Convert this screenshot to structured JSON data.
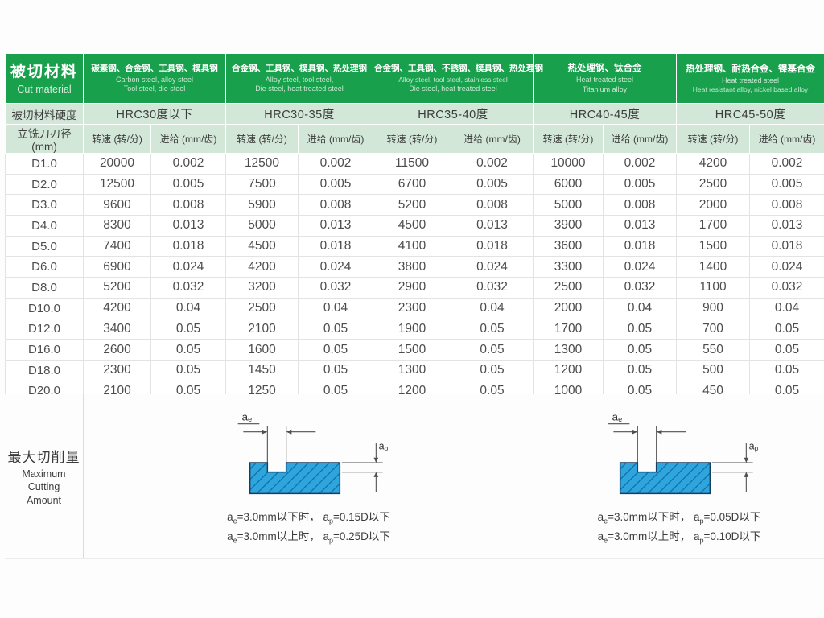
{
  "colors": {
    "header_green": "#18a04c",
    "light_green": "#d2e7d8",
    "diagram_blue": "#2fa5de",
    "diagram_hatch": "#0f6fa6",
    "diagram_outline": "#173f63",
    "text_dark": "#3c3c3c"
  },
  "table": {
    "corner": {
      "zh": "被切材料",
      "en": "Cut material"
    },
    "hardness_label": "被切材料硬度",
    "diameter_label": "立铣刀刃径 (mm)",
    "speed_label": "转速 (转/分)",
    "feed_label": "进给 (mm/齿)",
    "header_groups": [
      {
        "materials_zh": "碳素钢、合金钢、工具钢、模具钢",
        "materials_en": [
          "Carbon steel,  alloy steel",
          "Tool steel,  die steel"
        ],
        "hardness": "HRC30度以下"
      },
      {
        "materials_zh": "合金钢、工具钢、模具钢、热处理钢",
        "materials_en": [
          "Alloy steel, tool steel,",
          "Die steel, heat treated steel"
        ],
        "hardness": "HRC30-35度"
      },
      {
        "materials_zh": "合金钢、工具钢、不锈钢、模具钢、热处理钢",
        "materials_en": [
          "Alloy steel, tool steel, stainless steel",
          "Die steel, heat treated steel"
        ],
        "hardness": "HRC35-40度"
      },
      {
        "materials_zh": "热处理钢、钛合金",
        "materials_en": [
          "Heat treated steel",
          "Titanium alloy"
        ],
        "hardness": "HRC40-45度"
      },
      {
        "materials_zh": "热处理钢、耐热合金、镍基合金",
        "materials_en": [
          "Heat treated steel",
          "Heat resistant alloy,  nickel based alloy"
        ],
        "hardness": "HRC45-50度"
      }
    ],
    "rows": [
      {
        "diameter": "D1.0",
        "cells": [
          "20000",
          "0.002",
          "12500",
          "0.002",
          "11500",
          "0.002",
          "10000",
          "0.002",
          "4200",
          "0.002"
        ]
      },
      {
        "diameter": "D2.0",
        "cells": [
          "12500",
          "0.005",
          "7500",
          "0.005",
          "6700",
          "0.005",
          "6000",
          "0.005",
          "2500",
          "0.005"
        ]
      },
      {
        "diameter": "D3.0",
        "cells": [
          "9600",
          "0.008",
          "5900",
          "0.008",
          "5200",
          "0.008",
          "5000",
          "0.008",
          "2000",
          "0.008"
        ]
      },
      {
        "diameter": "D4.0",
        "cells": [
          "8300",
          "0.013",
          "5000",
          "0.013",
          "4500",
          "0.013",
          "3900",
          "0.013",
          "1700",
          "0.013"
        ]
      },
      {
        "diameter": "D5.0",
        "cells": [
          "7400",
          "0.018",
          "4500",
          "0.018",
          "4100",
          "0.018",
          "3600",
          "0.018",
          "1500",
          "0.018"
        ]
      },
      {
        "diameter": "D6.0",
        "cells": [
          "6900",
          "0.024",
          "4200",
          "0.024",
          "3800",
          "0.024",
          "3300",
          "0.024",
          "1400",
          "0.024"
        ]
      },
      {
        "diameter": "D8.0",
        "cells": [
          "5200",
          "0.032",
          "3200",
          "0.032",
          "2900",
          "0.032",
          "2500",
          "0.032",
          "1100",
          "0.032"
        ]
      },
      {
        "diameter": "D10.0",
        "cells": [
          "4200",
          "0.04",
          "2500",
          "0.04",
          "2300",
          "0.04",
          "2000",
          "0.04",
          "900",
          "0.04"
        ]
      },
      {
        "diameter": "D12.0",
        "cells": [
          "3400",
          "0.05",
          "2100",
          "0.05",
          "1900",
          "0.05",
          "1700",
          "0.05",
          "700",
          "0.05"
        ]
      },
      {
        "diameter": "D16.0",
        "cells": [
          "2600",
          "0.05",
          "1600",
          "0.05",
          "1500",
          "0.05",
          "1300",
          "0.05",
          "550",
          "0.05"
        ]
      },
      {
        "diameter": "D18.0",
        "cells": [
          "2300",
          "0.05",
          "1450",
          "0.05",
          "1300",
          "0.05",
          "1200",
          "0.05",
          "500",
          "0.05"
        ]
      },
      {
        "diameter": "D20.0",
        "cells": [
          "2100",
          "0.05",
          "1250",
          "0.05",
          "1200",
          "0.05",
          "1000",
          "0.05",
          "450",
          "0.05"
        ]
      }
    ]
  },
  "bottom": {
    "label_zh": "最大切削量",
    "label_en1": "Maximum Cutting",
    "label_en2": "Amount",
    "ae_label": "ae",
    "ap_label": "ap",
    "diagrams": [
      {
        "line1": "ae=3.0mm以下时， ap=0.15D以下",
        "line2": "ae=3.0mm以上时， ap=0.25D以下"
      },
      {
        "line1": "ae=3.0mm以下时， ap=0.05D以下",
        "line2": "ae=3.0mm以上时， ap=0.10D以下"
      }
    ]
  }
}
